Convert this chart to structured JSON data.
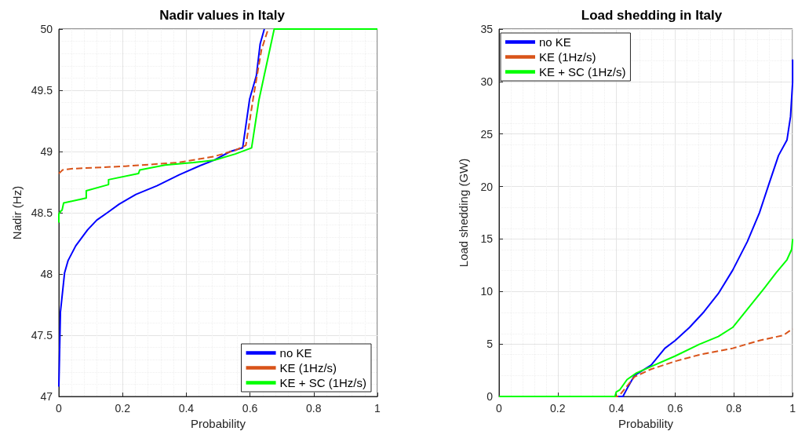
{
  "chart_data": [
    {
      "type": "line",
      "title": "Nadir values in Italy",
      "xlabel": "Probability",
      "ylabel": "Nadir (Hz)",
      "xlim": [
        0,
        1
      ],
      "xticks": [
        0,
        0.2,
        0.4,
        0.6,
        0.8,
        1
      ],
      "ylim": [
        47,
        50
      ],
      "yticks": [
        47,
        47.5,
        48,
        48.5,
        49,
        49.5,
        50
      ],
      "grid": true,
      "legend": "bottom right",
      "marker": "none",
      "series": [
        {
          "name": "no KE",
          "color": "#0000ff",
          "line_style": "solid",
          "x": [
            0,
            0.005,
            0.018,
            0.029,
            0.053,
            0.09,
            0.119,
            0.152,
            0.189,
            0.242,
            0.308,
            0.378,
            0.439,
            0.488,
            0.538,
            0.577,
            0.599,
            0.62,
            0.632,
            0.645
          ],
          "values": [
            47.08,
            47.69,
            48.01,
            48.11,
            48.23,
            48.36,
            48.44,
            48.5,
            48.57,
            48.65,
            48.72,
            48.81,
            48.88,
            48.93,
            49,
            49.03,
            49.43,
            49.62,
            49.88,
            50
          ]
        },
        {
          "name": "KE (1Hz/s)",
          "color": "#d95319",
          "line_style": "dashed",
          "x": [
            0,
            0.012,
            0.045,
            0.209,
            0.374,
            0.488,
            0.554,
            0.587,
            0.611,
            0.636,
            0.657
          ],
          "values": [
            48.82,
            48.85,
            48.86,
            48.88,
            48.91,
            48.96,
            49.01,
            49.05,
            49.45,
            49.83,
            50
          ]
        },
        {
          "name": "KE + SC (1Hz/s)",
          "color": "#00ff00",
          "line_style": "solid",
          "x": [
            0,
            0,
            0.008,
            0.01,
            0.015,
            0.086,
            0.086,
            0.156,
            0.156,
            0.25,
            0.254,
            0.333,
            0.423,
            0.488,
            0.554,
            0.605,
            0.628,
            0.676,
            1
          ],
          "values": [
            48.42,
            48.49,
            48.52,
            48.52,
            48.58,
            48.62,
            48.68,
            48.73,
            48.77,
            48.82,
            48.85,
            48.89,
            48.91,
            48.93,
            48.98,
            49.03,
            49.42,
            50,
            50
          ]
        }
      ]
    },
    {
      "type": "line",
      "title": "Load shedding in Italy",
      "xlabel": "Probability",
      "ylabel": "Load shedding (GW)",
      "xlim": [
        0,
        1
      ],
      "xticks": [
        0,
        0.2,
        0.4,
        0.6,
        0.8,
        1
      ],
      "ylim": [
        0,
        35
      ],
      "yticks": [
        0,
        5,
        10,
        15,
        20,
        25,
        30,
        35
      ],
      "grid": true,
      "legend": "top left",
      "marker": "none",
      "series": [
        {
          "name": "no KE",
          "color": "#0000ff",
          "line_style": "solid",
          "x": [
            0,
            0.422,
            0.436,
            0.461,
            0.518,
            0.565,
            0.6,
            0.649,
            0.698,
            0.747,
            0.796,
            0.846,
            0.887,
            0.919,
            0.952,
            0.981,
            0.993,
            1,
            1
          ],
          "values": [
            0,
            0,
            0.74,
            1.99,
            2.98,
            4.59,
            5.33,
            6.58,
            8.06,
            9.8,
            12.03,
            14.76,
            17.49,
            20.2,
            22.95,
            24.44,
            26.67,
            29.9,
            32.1
          ]
        },
        {
          "name": "KE (1Hz/s)",
          "color": "#d95319",
          "line_style": "dashed",
          "x": [
            0,
            0.403,
            0.411,
            0.436,
            0.461,
            0.518,
            0.6,
            0.682,
            0.796,
            0.887,
            0.969,
            1
          ],
          "values": [
            0,
            0,
            0.12,
            0.99,
            1.86,
            2.6,
            3.35,
            3.97,
            4.59,
            5.33,
            5.83,
            6.45
          ]
        },
        {
          "name": "KE + SC (1Hz/s)",
          "color": "#00ff00",
          "line_style": "solid",
          "x": [
            0,
            0.395,
            0.399,
            0.411,
            0.436,
            0.468,
            0.518,
            0.6,
            0.682,
            0.747,
            0.796,
            0.846,
            0.903,
            0.944,
            0.981,
            0.997,
            1
          ],
          "values": [
            0,
            0,
            0.42,
            0.62,
            1.61,
            2.23,
            2.85,
            3.85,
            4.96,
            5.71,
            6.58,
            8.31,
            10.3,
            11.79,
            13.03,
            14.02,
            15
          ]
        }
      ]
    }
  ]
}
